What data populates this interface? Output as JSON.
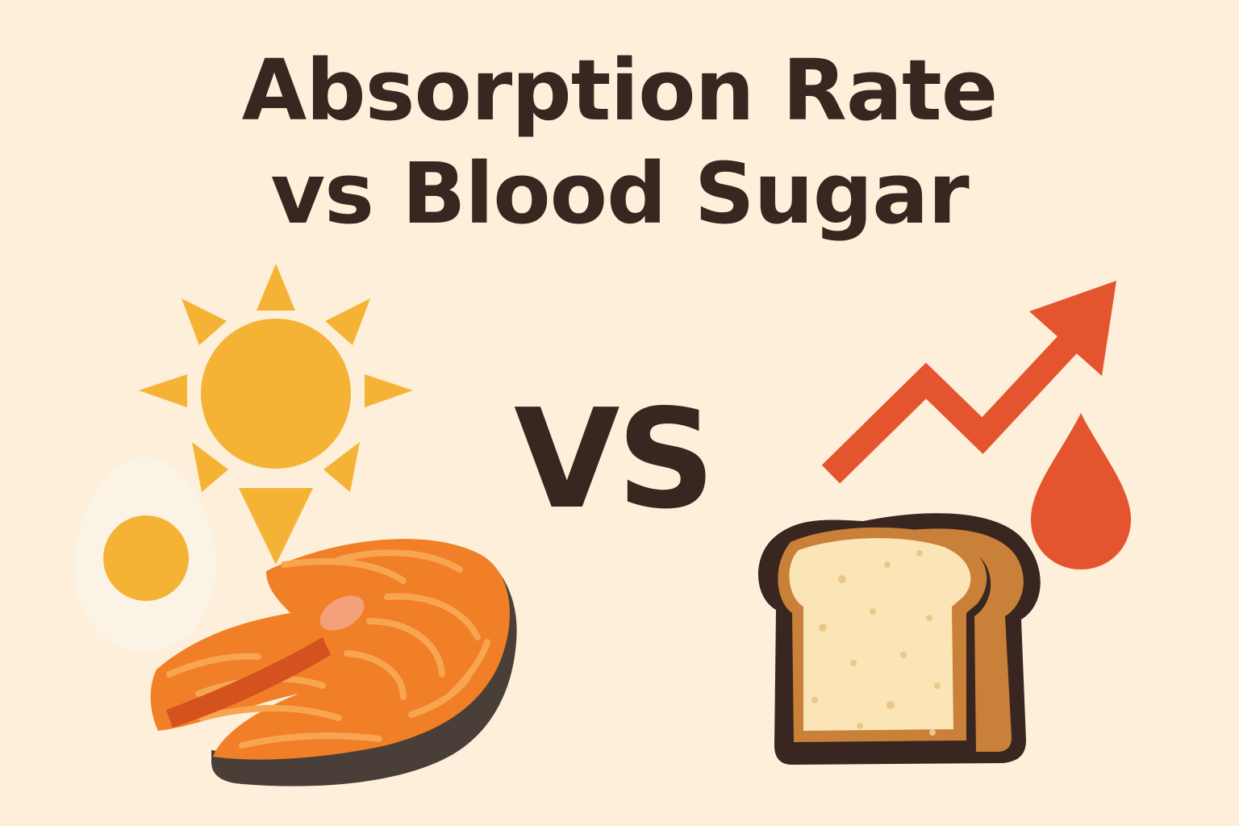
{
  "title": {
    "line1": "Absorption Rate",
    "line2": "vs Blood Sugar"
  },
  "vs_label": "VS",
  "left_group": {
    "icons": [
      "sun-icon",
      "egg-icon",
      "salmon-steak-icon"
    ]
  },
  "right_group": {
    "icons": [
      "rising-trend-arrow-icon",
      "blood-drop-icon",
      "bread-slice-icon"
    ]
  },
  "colors": {
    "background": "#FDEFD9",
    "text": "#3A2620",
    "sun": "#F5B335",
    "salmon": "#F07F28",
    "salmon_skin": "#4A3F38",
    "arrow_red": "#E4552F",
    "bread_crust": "#C98038",
    "bread_crumb": "#FBE4B5",
    "egg_white": "#FBF4E6",
    "egg_yolk": "#F5B335"
  }
}
